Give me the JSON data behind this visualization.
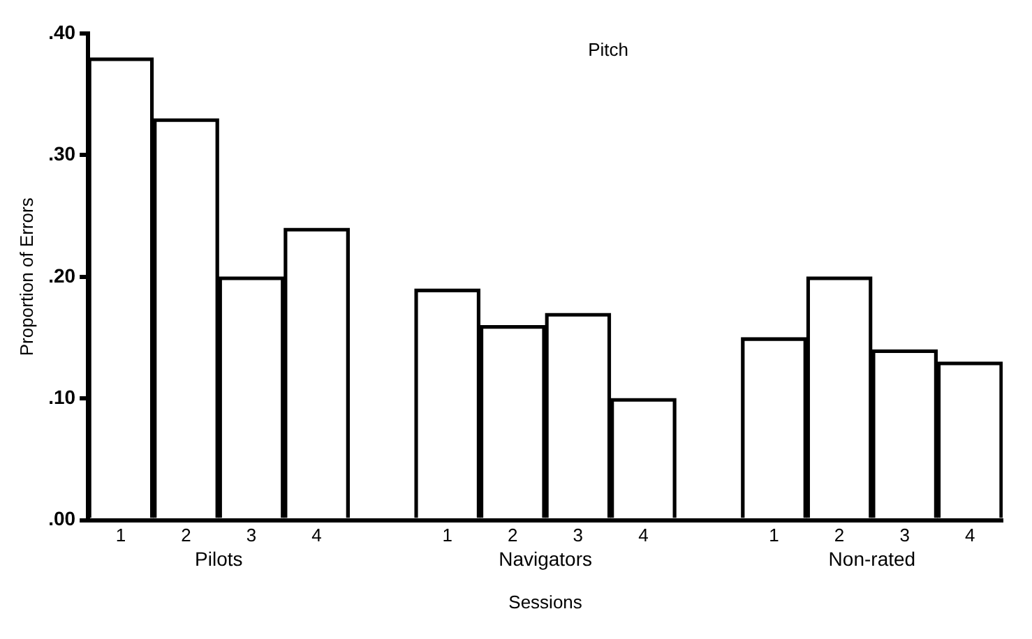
{
  "chart_data": {
    "type": "bar",
    "title": "Pitch",
    "xlabel": "Sessions",
    "ylabel": "Proportion of Errors",
    "categories": [
      "1",
      "2",
      "3",
      "4",
      null,
      "1",
      "2",
      "3",
      "4",
      null,
      "1",
      "2",
      "3",
      "4"
    ],
    "values": [
      0.38,
      0.33,
      0.2,
      0.24,
      null,
      0.19,
      0.16,
      0.17,
      0.1,
      null,
      0.15,
      0.2,
      0.14,
      0.13
    ],
    "color": "#000000",
    "annotations": [
      "Pilots",
      "Navigators",
      "Non-rated"
    ],
    "ylim": [
      0,
      0.4
    ],
    "yticks": [
      {
        "value": 0,
        "label": ".00"
      },
      {
        "value": 0.1,
        "label": ".10"
      },
      {
        "value": 0.2,
        "label": ".20"
      },
      {
        "value": 0.3,
        "label": ".30"
      },
      {
        "value": 0.4,
        "label": ".40"
      }
    ],
    "grid": false
  }
}
